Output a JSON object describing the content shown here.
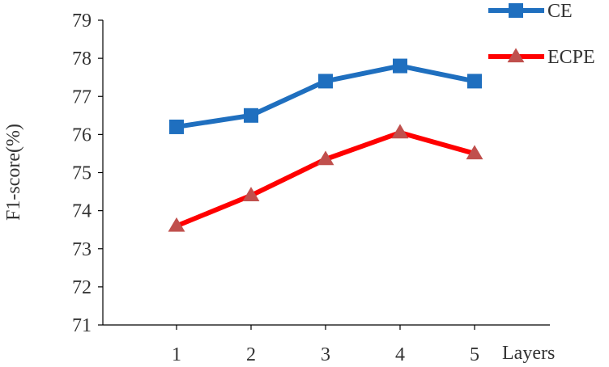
{
  "chart_data": {
    "type": "line",
    "xlabel": "Layers",
    "ylabel": "F1-score(%)",
    "categories": [
      "1",
      "2",
      "3",
      "4",
      "5"
    ],
    "ylim": [
      71,
      79
    ],
    "yticks": [
      "71",
      "72",
      "73",
      "74",
      "75",
      "76",
      "77",
      "78",
      "79"
    ],
    "grid": false,
    "legend_position": "top-right",
    "series": [
      {
        "name": "CE",
        "values": [
          76.2,
          76.5,
          77.4,
          77.8,
          77.4
        ],
        "color": "#1F6FBF",
        "marker": "square"
      },
      {
        "name": "ECPE",
        "values": [
          73.6,
          74.4,
          75.35,
          76.05,
          75.5
        ],
        "color": "#FF0000",
        "marker_color": "#C0504D",
        "marker": "triangle"
      }
    ]
  }
}
